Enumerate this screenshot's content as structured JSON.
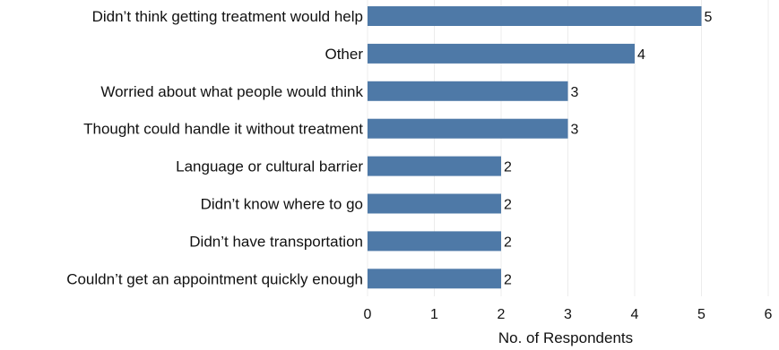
{
  "chart_data": {
    "type": "bar",
    "orientation": "horizontal",
    "categories": [
      "Didn’t think getting treatment would help",
      "Other",
      "Worried about what people would think",
      "Thought could handle it without treatment",
      "Language or cultural barrier",
      "Didn’t know where to go",
      "Didn’t have transportation",
      "Couldn’t get an appointment quickly enough"
    ],
    "values": [
      5,
      4,
      3,
      3,
      2,
      2,
      2,
      2
    ],
    "data_labels": [
      "5",
      "4",
      "3",
      "3",
      "2",
      "2",
      "2",
      "2"
    ],
    "xlabel": "No. of Respondents",
    "xlim": [
      0,
      6
    ],
    "xticks": [
      "0",
      "1",
      "2",
      "3",
      "4",
      "5",
      "6"
    ],
    "grid": "vertical",
    "bar_color": "#4e79a7",
    "grid_color": "#ececec"
  }
}
